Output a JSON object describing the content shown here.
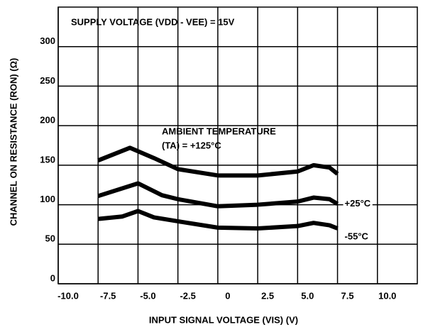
{
  "chart_data": {
    "type": "line",
    "annotations": [
      "SUPPLY VOLTAGE (VDD - VEE) = 15V",
      "AMBIENT TEMPERATURE",
      "(TA) = +125°C"
    ],
    "xlabel": "INPUT SIGNAL VOLTAGE (VIS) (V)",
    "ylabel": "CHANNEL ON RESISTANCE (RON) (Ω)",
    "xlim": [
      -10,
      12.5
    ],
    "ylim": [
      0,
      350
    ],
    "xticks": [
      {
        "value": -10,
        "label": "-10.0"
      },
      -7.5,
      {
        "value": -5,
        "label": "-5.0"
      },
      -2.5,
      0,
      2.5,
      {
        "value": 5,
        "label": "5.0"
      },
      7.5,
      {
        "value": 10,
        "label": "10.0"
      }
    ],
    "yticks": [
      0,
      50,
      100,
      150,
      200,
      250,
      300
    ],
    "grid": true,
    "series": [
      {
        "color": "#000000",
        "x": [
          -7.5,
          -5.5,
          -4,
          -2.5,
          0,
          2.5,
          5,
          6,
          7,
          7.5
        ],
        "values": [
          156,
          172,
          159,
          145,
          137,
          137,
          142,
          150,
          147,
          139
        ]
      },
      {
        "name": "+25°C",
        "color": "#000000",
        "x": [
          -7.5,
          -5,
          -3.5,
          -2.5,
          0,
          2.5,
          5,
          6,
          7,
          7.5
        ],
        "values": [
          111,
          127,
          112,
          107,
          98,
          100,
          104,
          109,
          107,
          101
        ]
      },
      {
        "name": "-55°C",
        "color": "#000000",
        "x": [
          -7.5,
          -6,
          -5,
          -4,
          -2.5,
          0,
          2.5,
          5,
          6,
          7,
          7.5
        ],
        "values": [
          82,
          85,
          92,
          84,
          79,
          71,
          70,
          73,
          77,
          74,
          70
        ]
      }
    ]
  }
}
